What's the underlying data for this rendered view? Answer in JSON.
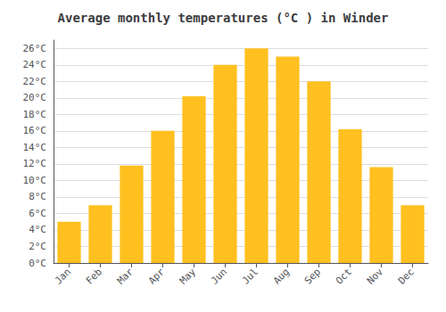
{
  "chart_data": {
    "type": "bar",
    "title": "Average monthly temperatures (°C ) in Winder",
    "categories": [
      "Jan",
      "Feb",
      "Mar",
      "Apr",
      "May",
      "Jun",
      "Jul",
      "Aug",
      "Sep",
      "Oct",
      "Nov",
      "Dec"
    ],
    "values": [
      5,
      7,
      11.8,
      16,
      20.2,
      24,
      26,
      25,
      22,
      16.2,
      11.6,
      7
    ],
    "color": "#FFC020",
    "ylim": [
      0,
      27
    ],
    "yticks": [
      {
        "value": 0,
        "label": "0°C"
      },
      {
        "value": 2,
        "label": "2°C"
      },
      {
        "value": 4,
        "label": "4°C"
      },
      {
        "value": 6,
        "label": "6°C"
      },
      {
        "value": 8,
        "label": "8°C"
      },
      {
        "value": 10,
        "label": "10°C"
      },
      {
        "value": 12,
        "label": "12°C"
      },
      {
        "value": 14,
        "label": "14°C"
      },
      {
        "value": 16,
        "label": "16°C"
      },
      {
        "value": 18,
        "label": "18°C"
      },
      {
        "value": 20,
        "label": "20°C"
      },
      {
        "value": 22,
        "label": "22°C"
      },
      {
        "value": 24,
        "label": "24°C"
      },
      {
        "value": 26,
        "label": "26°C"
      }
    ],
    "grid": true
  }
}
